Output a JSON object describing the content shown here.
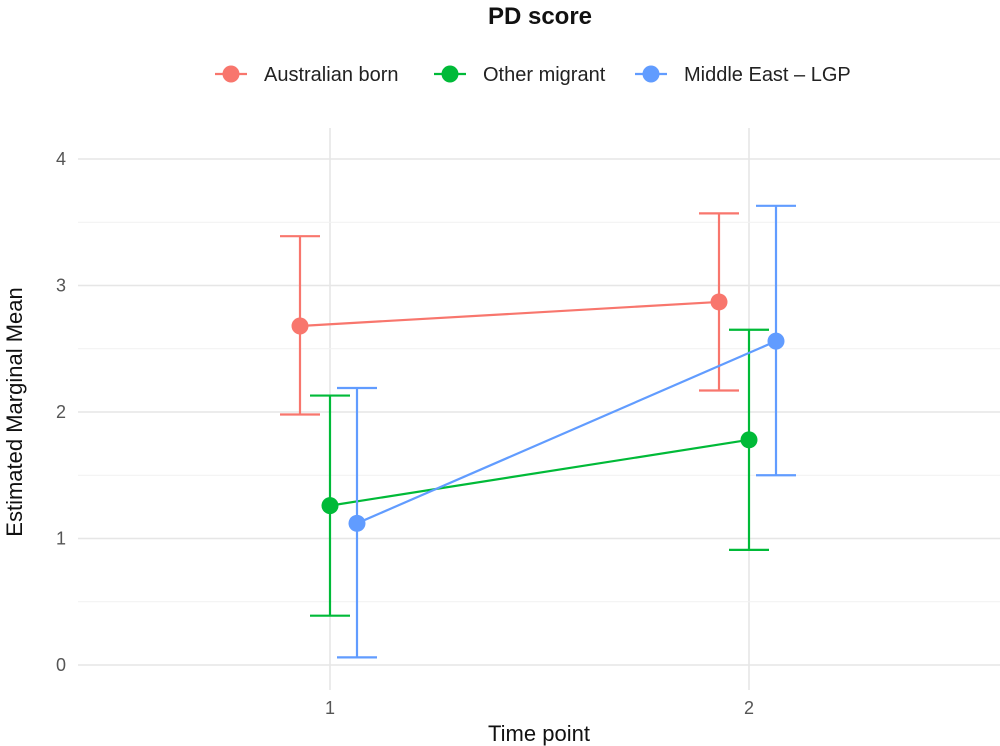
{
  "chart_data": {
    "type": "line",
    "title": "PD score",
    "xlabel": "Time point",
    "ylabel": "Estimated Marginal Mean",
    "x_categories": [
      "1",
      "2"
    ],
    "yticks": [
      0,
      1,
      2,
      3,
      4
    ],
    "ylim": [
      -0.2,
      4.3
    ],
    "grid": true,
    "legend_position": "top",
    "series": [
      {
        "name": "Australian born",
        "color": "#F8766D",
        "points": [
          {
            "x": "1",
            "y": 2.68,
            "lower": 1.98,
            "upper": 3.39
          },
          {
            "x": "2",
            "y": 2.87,
            "lower": 2.17,
            "upper": 3.57
          }
        ]
      },
      {
        "name": "Other migrant",
        "color": "#00BA38",
        "points": [
          {
            "x": "1",
            "y": 1.26,
            "lower": 0.39,
            "upper": 2.13
          },
          {
            "x": "2",
            "y": 1.78,
            "lower": 0.91,
            "upper": 2.65
          }
        ]
      },
      {
        "name": "Middle East – LGP",
        "color": "#619CFF",
        "points": [
          {
            "x": "1",
            "y": 1.12,
            "lower": 0.06,
            "upper": 2.19
          },
          {
            "x": "2",
            "y": 2.56,
            "lower": 1.5,
            "upper": 3.63
          }
        ]
      }
    ]
  }
}
